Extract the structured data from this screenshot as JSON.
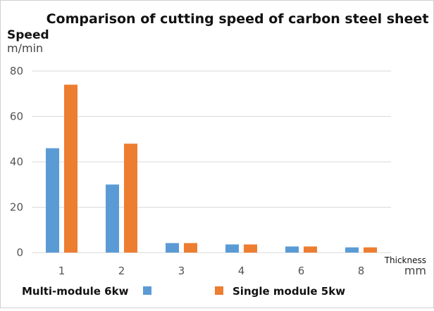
{
  "chart_data": {
    "type": "bar",
    "title": "Comparison of cutting speed of carbon steel sheet",
    "ylabel": "Speed",
    "yunit": "m/min",
    "xlabel": "Thickness",
    "xunit": "mm",
    "categories": [
      "1",
      "2",
      "3",
      "4",
      "6",
      "8"
    ],
    "ylim": [
      0,
      80
    ],
    "yticks": [
      0,
      20,
      40,
      60,
      80
    ],
    "grid": true,
    "legend_position": "bottom",
    "series": [
      {
        "name": "Multi-module 6kw",
        "color": "#5b9bd5",
        "values": [
          46,
          30,
          4.2,
          3.6,
          2.7,
          2.3
        ]
      },
      {
        "name": "Single module 5kw",
        "color": "#ed7d31",
        "values": [
          74,
          48,
          4.2,
          3.6,
          2.7,
          2.3
        ]
      }
    ]
  }
}
